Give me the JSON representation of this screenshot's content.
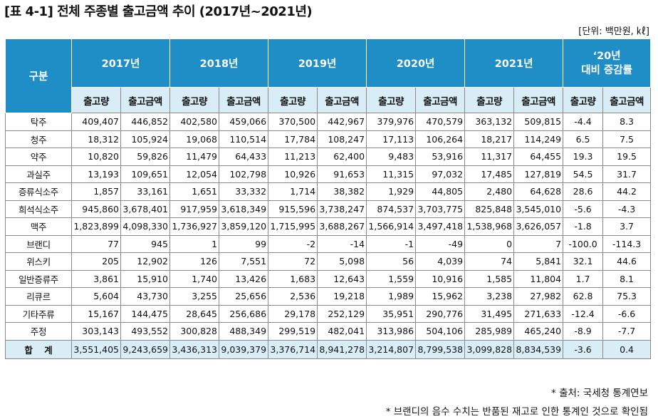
{
  "title": "[표 4-1] 전체 주종별 출고금액 추이 (2017년~2021년)",
  "unit": "[단위: 백만원, ㎘]",
  "header": {
    "category": "구분",
    "years": [
      "2017년",
      "2018년",
      "2019년",
      "2020년",
      "2021년"
    ],
    "change_line1": "‘20년",
    "change_line2": "대비 증감률",
    "qty": "출고량",
    "amount": "출고금액"
  },
  "rows": [
    {
      "name": "탁주",
      "v": [
        "409,407",
        "446,852",
        "402,580",
        "459,066",
        "370,500",
        "442,967",
        "379,976",
        "470,579",
        "363,132",
        "509,815"
      ],
      "rq": "-4.4",
      "ra": "8.3"
    },
    {
      "name": "청주",
      "v": [
        "18,312",
        "105,924",
        "19,068",
        "110,514",
        "17,784",
        "108,247",
        "17,113",
        "106,264",
        "18,217",
        "114,249"
      ],
      "rq": "6.5",
      "ra": "7.5"
    },
    {
      "name": "약주",
      "v": [
        "10,820",
        "59,826",
        "11,479",
        "64,433",
        "11,213",
        "62,400",
        "9,483",
        "53,916",
        "11,317",
        "64,455"
      ],
      "rq": "19.3",
      "ra": "19.5"
    },
    {
      "name": "과실주",
      "v": [
        "13,193",
        "109,651",
        "12,054",
        "102,798",
        "10,926",
        "91,653",
        "11,315",
        "97,032",
        "17,485",
        "127,819"
      ],
      "rq": "54.5",
      "ra": "31.7"
    },
    {
      "name": "증류식소주",
      "v": [
        "1,857",
        "33,161",
        "1,651",
        "33,332",
        "1,714",
        "38,382",
        "1,929",
        "44,805",
        "2,480",
        "64,628"
      ],
      "rq": "28.6",
      "ra": "44.2"
    },
    {
      "name": "희석식소주",
      "v": [
        "945,860",
        "3,678,401",
        "917,959",
        "3,618,349",
        "915,596",
        "3,738,247",
        "874,537",
        "3,703,775",
        "825,848",
        "3,545,010"
      ],
      "rq": "-5.6",
      "ra": "-4.3"
    },
    {
      "name": "맥주",
      "v": [
        "1,823,899",
        "4,098,330",
        "1,736,927",
        "3,859,120",
        "1,715,995",
        "3,688,267",
        "1,566,914",
        "3,497,418",
        "1,538,968",
        "3,626,057"
      ],
      "rq": "-1.8",
      "ra": "3.7"
    },
    {
      "name": "브랜디",
      "v": [
        "77",
        "945",
        "1",
        "99",
        "-2",
        "-14",
        "-1",
        "-49",
        "0",
        "7"
      ],
      "rq": "-100.0",
      "ra": "-114.3"
    },
    {
      "name": "위스키",
      "v": [
        "205",
        "12,902",
        "126",
        "7,551",
        "72",
        "5,098",
        "56",
        "4,039",
        "74",
        "5,841"
      ],
      "rq": "32.1",
      "ra": "44.6"
    },
    {
      "name": "일반증류주",
      "v": [
        "3,861",
        "15,910",
        "1,740",
        "13,426",
        "1,683",
        "12,643",
        "1,559",
        "10,916",
        "1,585",
        "11,804"
      ],
      "rq": "1.7",
      "ra": "8.1"
    },
    {
      "name": "리큐르",
      "v": [
        "5,604",
        "43,730",
        "3,255",
        "25,656",
        "2,536",
        "19,218",
        "1,989",
        "15,962",
        "3,238",
        "27,982"
      ],
      "rq": "62.8",
      "ra": "75.3"
    },
    {
      "name": "기타주류",
      "v": [
        "15,167",
        "144,475",
        "28,645",
        "256,686",
        "29,178",
        "252,129",
        "35,951",
        "290,776",
        "31,495",
        "271,633"
      ],
      "rq": "-12.4",
      "ra": "-6.6"
    },
    {
      "name": "주정",
      "v": [
        "303,143",
        "493,552",
        "300,828",
        "488,349",
        "299,519",
        "482,041",
        "313,986",
        "504,106",
        "285,989",
        "465,240"
      ],
      "rq": "-8.9",
      "ra": "-7.7"
    }
  ],
  "total": {
    "name": "합 계",
    "v": [
      "3,551,405",
      "9,243,659",
      "3,436,313",
      "9,039,379",
      "3,376,714",
      "8,941,278",
      "3,214,807",
      "8,799,538",
      "3,099,828",
      "8,834,539"
    ],
    "rq": "-3.6",
    "ra": "0.4"
  },
  "source": "* 출처: 국세청 통계연보",
  "footnote": "* 브랜디의 음수 수치는 반품된 재고로 인한 통계인 것으로 확인됨"
}
